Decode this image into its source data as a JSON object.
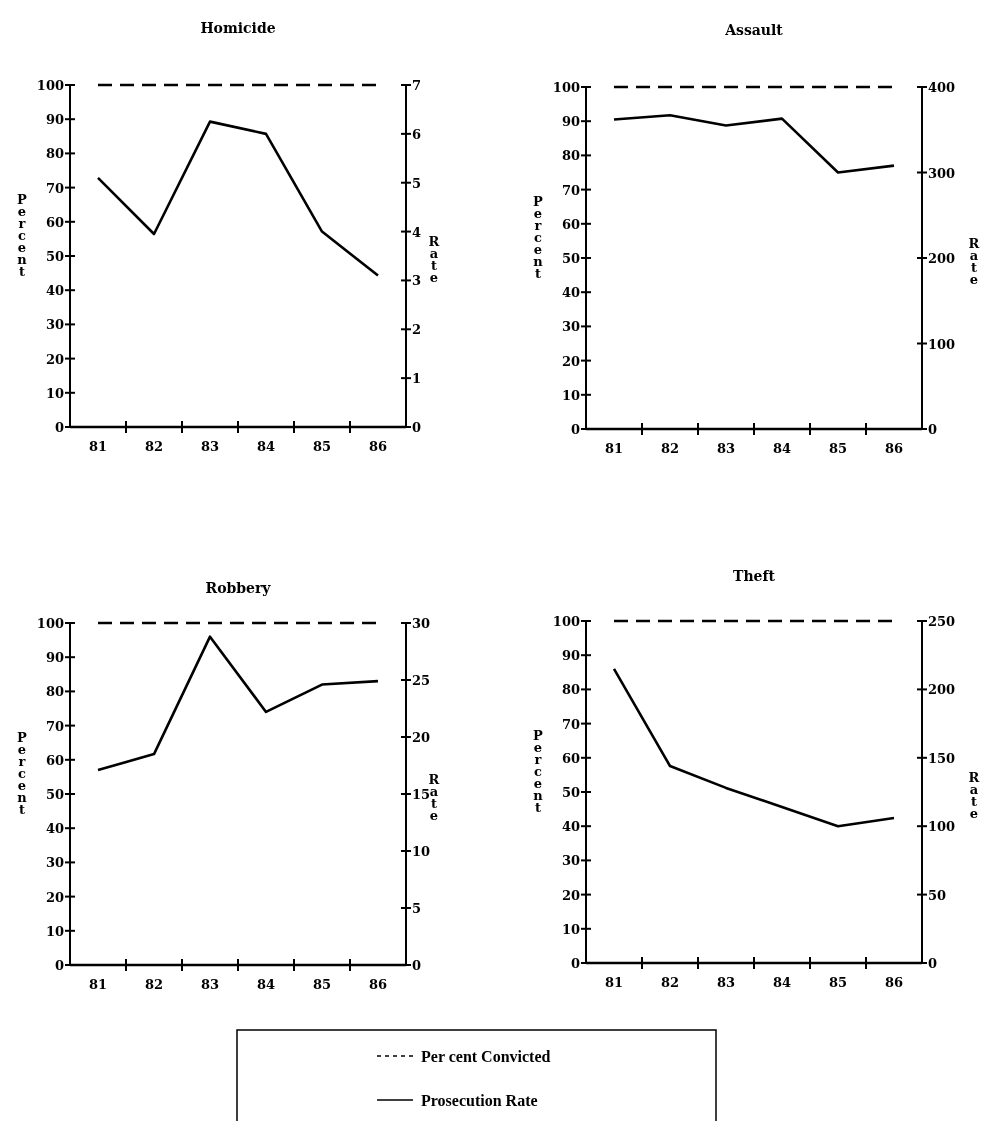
{
  "chart_data": [
    {
      "type": "line",
      "title": "Homicide",
      "ylabel": "Percent",
      "y2label": "Rate",
      "categories": [
        "81",
        "82",
        "83",
        "84",
        "85",
        "86"
      ],
      "ylim": [
        0,
        100
      ],
      "yticks": [
        0,
        10,
        20,
        30,
        40,
        50,
        60,
        70,
        80,
        90,
        100
      ],
      "y2lim": [
        0,
        7
      ],
      "y2ticks": [
        0,
        1,
        2,
        3,
        4,
        5,
        6,
        7
      ],
      "legend": "bottom",
      "series": [
        {
          "name": "Per cent Convicted",
          "color": "#000000",
          "line_style": "dashed",
          "values": [
            100,
            100,
            100,
            100,
            100,
            100
          ]
        },
        {
          "name": "Prosecution Rate",
          "color": "#000000",
          "line_style": "solid",
          "axis": "y2",
          "values": [
            5.1,
            3.95,
            6.25,
            6.0,
            4.0,
            3.1
          ]
        }
      ]
    },
    {
      "type": "line",
      "title": "Assault",
      "ylabel": "Percent",
      "y2label": "Rate",
      "categories": [
        "81",
        "82",
        "83",
        "84",
        "85",
        "86"
      ],
      "ylim": [
        0,
        100
      ],
      "yticks": [
        0,
        10,
        20,
        30,
        40,
        50,
        60,
        70,
        80,
        90,
        100
      ],
      "y2lim": [
        0,
        400
      ],
      "y2ticks": [
        0,
        100,
        200,
        300,
        400
      ],
      "series": [
        {
          "color": "#000000",
          "line_style": "dashed",
          "values": [
            100,
            100,
            100,
            100,
            100,
            100
          ]
        },
        {
          "color": "#000000",
          "line_style": "solid",
          "axis": "y2",
          "values": [
            362,
            367,
            355,
            363,
            300,
            308
          ]
        }
      ]
    },
    {
      "type": "line",
      "title": "Robbery",
      "ylabel": "Percent",
      "y2label": "Rate",
      "categories": [
        "81",
        "82",
        "83",
        "84",
        "85",
        "86"
      ],
      "ylim": [
        0,
        100
      ],
      "yticks": [
        0,
        10,
        20,
        30,
        40,
        50,
        60,
        70,
        80,
        90,
        100
      ],
      "y2lim": [
        0,
        30
      ],
      "y2ticks": [
        0,
        5,
        10,
        15,
        20,
        25,
        30
      ],
      "series": [
        {
          "color": "#000000",
          "line_style": "dashed",
          "values": [
            100,
            100,
            100,
            100,
            100,
            100
          ]
        },
        {
          "color": "#000000",
          "line_style": "solid",
          "axis": "y2",
          "values": [
            17.1,
            18.5,
            28.8,
            22.2,
            24.6,
            24.9
          ]
        }
      ]
    },
    {
      "type": "line",
      "title": "Theft",
      "ylabel": "Percent",
      "y2label": "Rate",
      "categories": [
        "81",
        "82",
        "83",
        "84",
        "85",
        "86"
      ],
      "ylim": [
        0,
        100
      ],
      "yticks": [
        0,
        10,
        20,
        30,
        40,
        50,
        60,
        70,
        80,
        90,
        100
      ],
      "y2lim": [
        0,
        250
      ],
      "y2ticks": [
        0,
        50,
        100,
        150,
        200,
        250
      ],
      "series": [
        {
          "color": "#000000",
          "line_style": "dashed",
          "values": [
            100,
            100,
            100,
            100,
            100,
            100
          ]
        },
        {
          "color": "#000000",
          "line_style": "solid",
          "axis": "y2",
          "values": [
            215,
            144,
            128,
            114,
            100,
            106
          ]
        }
      ]
    }
  ]
}
